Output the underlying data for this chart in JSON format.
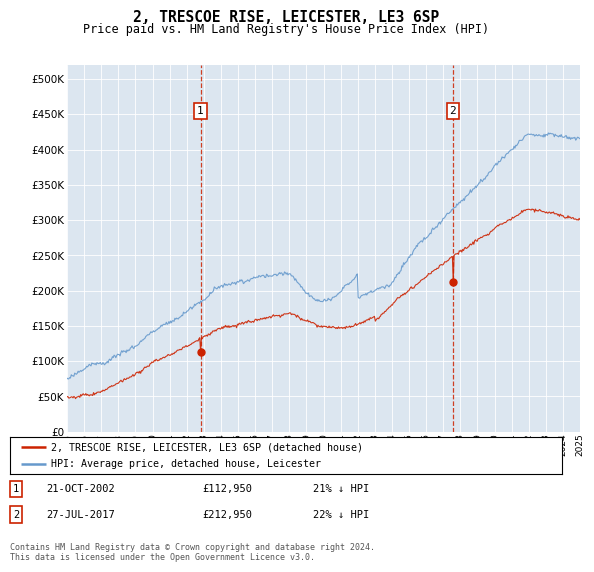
{
  "title": "2, TRESCOE RISE, LEICESTER, LE3 6SP",
  "subtitle": "Price paid vs. HM Land Registry's House Price Index (HPI)",
  "bg_color": "#dce6f0",
  "plot_bg_color": "#dce6f0",
  "hpi_color": "#6699cc",
  "sale_color": "#cc2200",
  "dashed_color": "#cc2200",
  "sale_points": [
    {
      "year": 2002.81,
      "value": 112950,
      "label": "1"
    },
    {
      "year": 2017.57,
      "value": 212950,
      "label": "2"
    }
  ],
  "legend": [
    "2, TRESCOE RISE, LEICESTER, LE3 6SP (detached house)",
    "HPI: Average price, detached house, Leicester"
  ],
  "table_rows": [
    [
      "1",
      "21-OCT-2002",
      "£112,950",
      "21% ↓ HPI"
    ],
    [
      "2",
      "27-JUL-2017",
      "£212,950",
      "22% ↓ HPI"
    ]
  ],
  "footnote": "Contains HM Land Registry data © Crown copyright and database right 2024.\nThis data is licensed under the Open Government Licence v3.0.",
  "ylim": [
    0,
    520000
  ],
  "yticks": [
    0,
    50000,
    100000,
    150000,
    200000,
    250000,
    300000,
    350000,
    400000,
    450000,
    500000
  ],
  "xstart": 1995,
  "xend": 2025
}
